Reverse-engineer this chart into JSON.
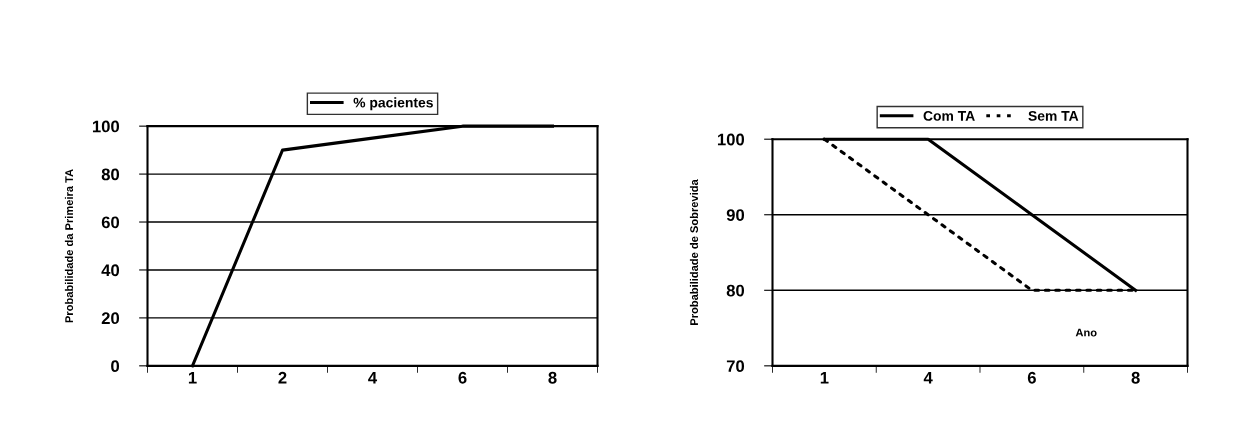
{
  "chart_data": [
    {
      "type": "line",
      "ylabel": "Probabilidade da Primeira TA",
      "categories": [
        "1",
        "2",
        "4",
        "6",
        "8"
      ],
      "series": [
        {
          "name": "% pacientes",
          "color": "#000000",
          "values": [
            0,
            90,
            95,
            100,
            100
          ],
          "line_style": "solid"
        }
      ],
      "ylim": [
        0,
        100
      ],
      "yticks": [
        0,
        20,
        40,
        60,
        80,
        100
      ],
      "grid": "y",
      "legend": "top",
      "marker": "none"
    },
    {
      "type": "line",
      "ylabel": "Probabilidade de Sobrevida",
      "categories": [
        "1",
        "4",
        "6",
        "8"
      ],
      "series": [
        {
          "name": "Com TA",
          "color": "#000000",
          "values": [
            100,
            100,
            90,
            80
          ],
          "line_style": "solid"
        },
        {
          "name": "Sem TA",
          "color": "#000000",
          "values": [
            100,
            90,
            80,
            80
          ],
          "line_style": "dotted"
        }
      ],
      "ylim": [
        70,
        100
      ],
      "yticks": [
        70,
        80,
        90,
        100
      ],
      "grid": "y",
      "legend": "top",
      "marker": "none",
      "annotations": [
        "Ano"
      ]
    }
  ]
}
